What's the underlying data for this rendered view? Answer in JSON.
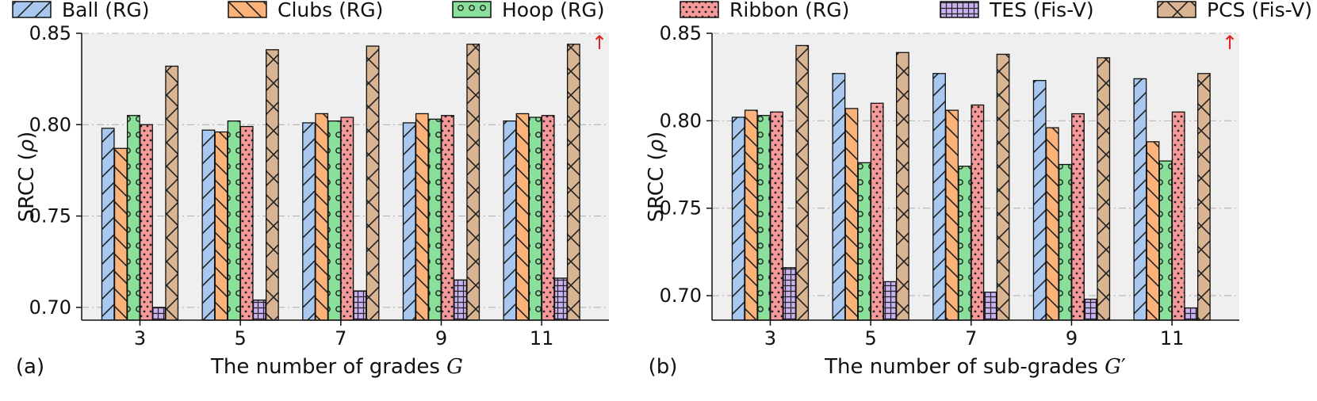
{
  "legend": [
    {
      "label": "Ball (RG)",
      "color": "#a9c8f0",
      "pattern": "slash"
    },
    {
      "label": "Clubs (RG)",
      "color": "#fbb37a",
      "pattern": "backslash"
    },
    {
      "label": "Hoop (RG)",
      "color": "#8ae09a",
      "pattern": "circles"
    },
    {
      "label": "Ribbon (RG)",
      "color": "#f49a9a",
      "pattern": "dots"
    },
    {
      "label": "TES (Fis-V)",
      "color": "#c9b2ef",
      "pattern": "grid"
    },
    {
      "label": "PCS (Fis-V)",
      "color": "#d8b493",
      "pattern": "cross"
    }
  ],
  "up_arrow": "↑",
  "chart_data": [
    {
      "type": "bar",
      "panel_label": "(a)",
      "xlabel_text": "The number of grades ",
      "xlabel_var": "G",
      "xlabel_prime": "",
      "ylabel": "SRCC (",
      "ylabel_var": "ρ",
      "ylabel_end": ")",
      "ylim": [
        0.693,
        0.85
      ],
      "yticks": [
        "0.70",
        "0.75",
        "0.80",
        "0.85"
      ],
      "ytick_values": [
        0.7,
        0.75,
        0.8,
        0.85
      ],
      "categories": [
        "3",
        "5",
        "7",
        "9",
        "11"
      ],
      "series": [
        {
          "name": "Ball (RG)",
          "values": [
            0.798,
            0.797,
            0.801,
            0.801,
            0.802
          ]
        },
        {
          "name": "Clubs (RG)",
          "values": [
            0.787,
            0.796,
            0.806,
            0.806,
            0.806
          ]
        },
        {
          "name": "Hoop (RG)",
          "values": [
            0.805,
            0.802,
            0.802,
            0.803,
            0.804
          ]
        },
        {
          "name": "Ribbon (RG)",
          "values": [
            0.8,
            0.799,
            0.804,
            0.805,
            0.805
          ]
        },
        {
          "name": "TES (Fis-V)",
          "values": [
            0.7,
            0.704,
            0.709,
            0.715,
            0.716
          ]
        },
        {
          "name": "PCS (Fis-V)",
          "values": [
            0.832,
            0.841,
            0.843,
            0.844,
            0.844
          ]
        }
      ]
    },
    {
      "type": "bar",
      "panel_label": "(b)",
      "xlabel_text": "The number of sub-grades ",
      "xlabel_var": "G",
      "xlabel_prime": "′",
      "ylabel": "SRCC (",
      "ylabel_var": "ρ",
      "ylabel_end": ")",
      "ylim": [
        0.686,
        0.85
      ],
      "yticks": [
        "0.70",
        "0.75",
        "0.80",
        "0.85"
      ],
      "ytick_values": [
        0.7,
        0.75,
        0.8,
        0.85
      ],
      "categories": [
        "3",
        "5",
        "7",
        "9",
        "11"
      ],
      "series": [
        {
          "name": "Ball (RG)",
          "values": [
            0.802,
            0.827,
            0.827,
            0.823,
            0.824
          ]
        },
        {
          "name": "Clubs (RG)",
          "values": [
            0.806,
            0.807,
            0.806,
            0.796,
            0.788
          ]
        },
        {
          "name": "Hoop (RG)",
          "values": [
            0.803,
            0.776,
            0.774,
            0.775,
            0.777
          ]
        },
        {
          "name": "Ribbon (RG)",
          "values": [
            0.805,
            0.81,
            0.809,
            0.804,
            0.805
          ]
        },
        {
          "name": "TES (Fis-V)",
          "values": [
            0.716,
            0.708,
            0.702,
            0.698,
            0.693
          ]
        },
        {
          "name": "PCS (Fis-V)",
          "values": [
            0.843,
            0.839,
            0.838,
            0.836,
            0.827
          ]
        }
      ]
    }
  ]
}
